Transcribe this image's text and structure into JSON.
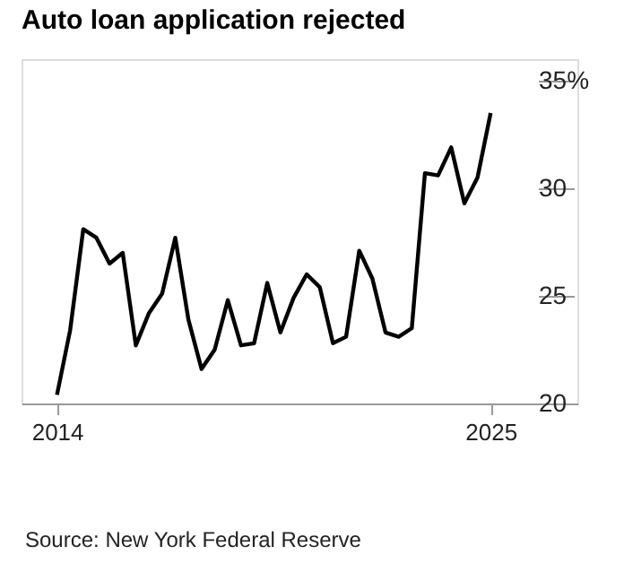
{
  "chart_data": {
    "type": "line",
    "title": "Auto loan application rejected",
    "x": [
      2014,
      2014.333,
      2014.667,
      2015,
      2015.333,
      2015.667,
      2016,
      2016.333,
      2016.667,
      2017,
      2017.333,
      2017.667,
      2018,
      2018.333,
      2018.667,
      2019,
      2019.333,
      2019.667,
      2020,
      2020.333,
      2020.667,
      2021,
      2021.333,
      2021.667,
      2022,
      2022.333,
      2022.667,
      2023,
      2023.333,
      2023.667,
      2024,
      2024.333,
      2024.667,
      2025
    ],
    "series": [
      {
        "color": "#000000",
        "values": [
          20.4,
          23.4,
          28.1,
          27.7,
          26.5,
          27.0,
          22.7,
          24.2,
          25.1,
          27.7,
          23.9,
          21.6,
          22.5,
          24.8,
          22.7,
          22.8,
          25.6,
          23.3,
          24.9,
          26.0,
          25.4,
          22.8,
          23.1,
          27.1,
          25.8,
          23.3,
          23.1,
          23.5,
          30.7,
          30.6,
          31.9,
          29.3,
          30.5,
          33.5
        ]
      }
    ],
    "xlim": [
      2013.1,
      2027.2
    ],
    "xticks": [
      2014,
      2025
    ],
    "ylim": [
      20,
      36
    ],
    "yticks": [
      20,
      25,
      30,
      {
        "value": 35,
        "label": "35%"
      }
    ],
    "grid": false,
    "marker": "none",
    "line_style": "solid",
    "annotations": [
      "Source: New York Federal Reserve"
    ]
  }
}
